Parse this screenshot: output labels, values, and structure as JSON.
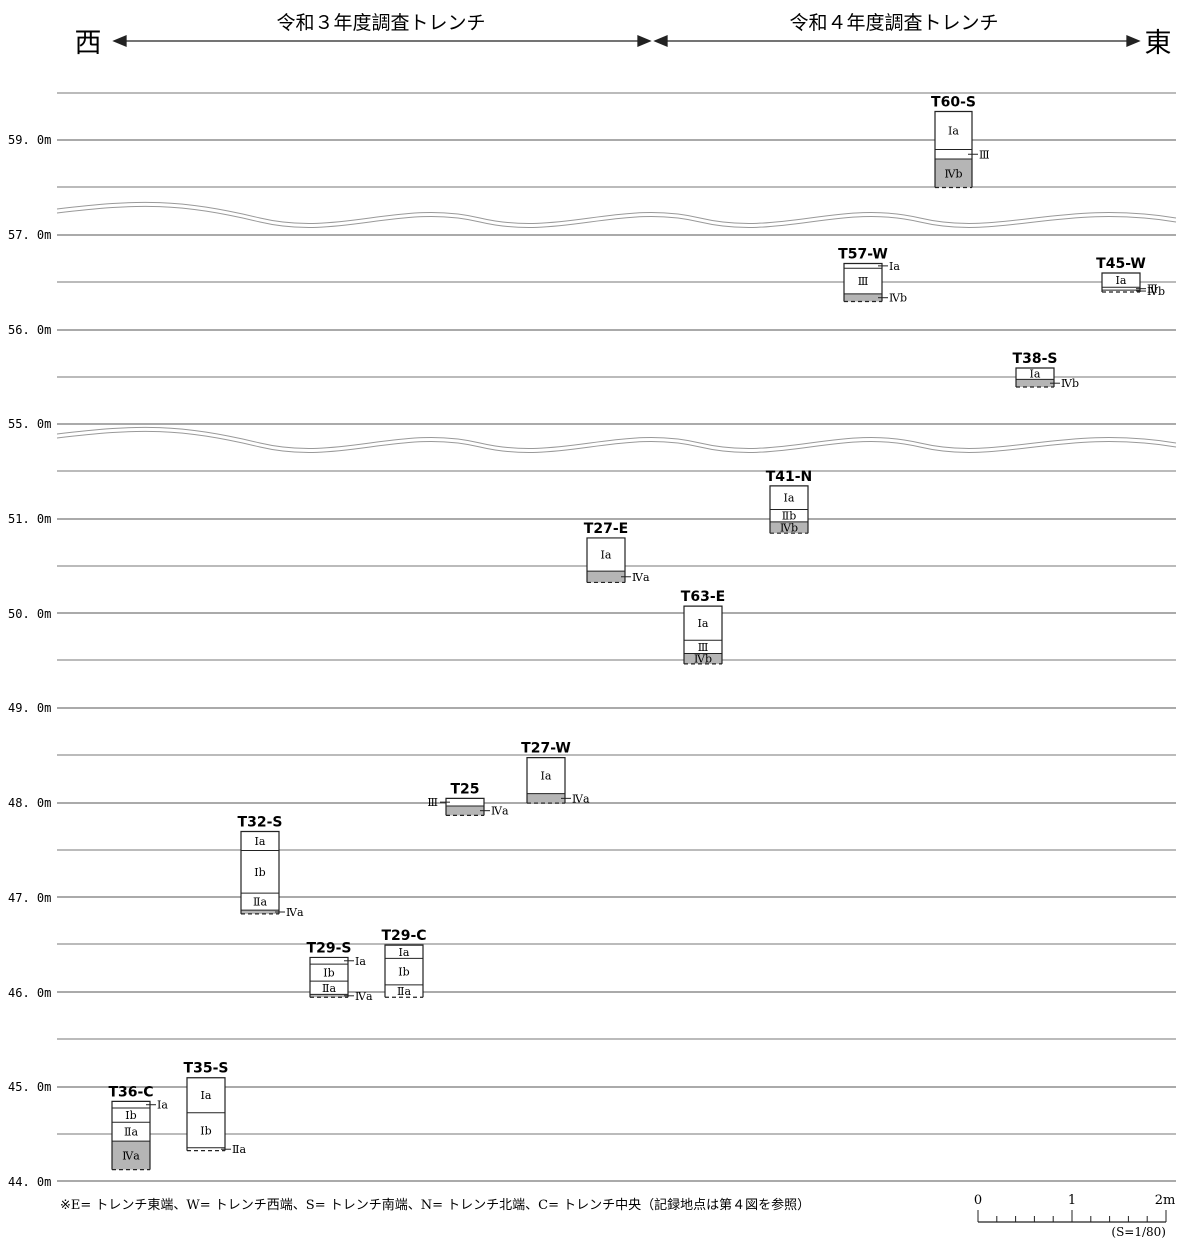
{
  "header": {
    "west": "西",
    "east": "東",
    "left_period": "令和３年度調査トレンチ",
    "right_period": "令和４年度調査トレンチ"
  },
  "elevation_labels": [
    "59. 0m",
    "57. 0m",
    "56. 0m",
    "55. 0m",
    "51. 0m",
    "50. 0m",
    "49. 0m",
    "48. 0m",
    "47. 0m",
    "46. 0m",
    "45. 0m",
    "44. 0m"
  ],
  "footnote": "※E= トレンチ東端、W= トレンチ西端、S= トレンチ南端、N= トレンチ北端、C= トレンチ中央（記録地点は第４図を参照）",
  "scale": {
    "ticks": [
      "0",
      "1",
      "2m"
    ],
    "ratio": "(S=1/80)"
  },
  "trenches": [
    {
      "id": "T60-S",
      "top_m": 59.3,
      "bottom_m": 58.5,
      "layers": [
        {
          "name": "Ⅰa",
          "top": 59.3,
          "bottom": 58.9,
          "fill": "white"
        },
        {
          "name": "Ⅲ",
          "top": 58.9,
          "bottom": 58.8,
          "fill": "white",
          "side": "right"
        },
        {
          "name": "Ⅳb",
          "top": 58.8,
          "bottom": 58.5,
          "fill": "gray"
        }
      ]
    },
    {
      "id": "T45-W",
      "top_m": 57.6,
      "bottom_m": 57.4,
      "layers": [
        {
          "name": "Ⅰa",
          "top": 57.6,
          "bottom": 57.45,
          "fill": "white"
        },
        {
          "name": "Ⅲ",
          "top": 57.45,
          "bottom": 57.42,
          "fill": "white",
          "side": "right"
        },
        {
          "name": "Ⅳb",
          "top": 57.42,
          "bottom": 57.4,
          "fill": "white",
          "side": "right"
        }
      ]
    },
    {
      "id": "T57-W",
      "top_m": 56.7,
      "bottom_m": 56.3,
      "layers": [
        {
          "name": "Ⅰa",
          "top": 56.7,
          "bottom": 56.65,
          "fill": "white",
          "side": "right"
        },
        {
          "name": "Ⅲ",
          "top": 56.65,
          "bottom": 56.38,
          "fill": "white"
        },
        {
          "name": "Ⅳb",
          "top": 56.38,
          "bottom": 56.3,
          "fill": "gray",
          "side": "right"
        }
      ]
    },
    {
      "id": "T38-S",
      "top_m": 55.6,
      "bottom_m": 55.4,
      "layers": [
        {
          "name": "Ⅰa",
          "top": 55.6,
          "bottom": 55.48,
          "fill": "white"
        },
        {
          "name": "Ⅳb",
          "top": 55.48,
          "bottom": 55.4,
          "fill": "gray",
          "side": "right"
        }
      ]
    },
    {
      "id": "T41-N",
      "top_m": 51.35,
      "bottom_m": 50.85,
      "layers": [
        {
          "name": "Ⅰa",
          "top": 51.35,
          "bottom": 51.1,
          "fill": "white"
        },
        {
          "name": "Ⅱb",
          "top": 51.1,
          "bottom": 50.97,
          "fill": "white"
        },
        {
          "name": "Ⅳb",
          "top": 50.97,
          "bottom": 50.85,
          "fill": "gray"
        }
      ]
    },
    {
      "id": "T27-E",
      "top_m": 50.8,
      "bottom_m": 50.33,
      "layers": [
        {
          "name": "Ⅰa",
          "top": 50.8,
          "bottom": 50.45,
          "fill": "white"
        },
        {
          "name": "Ⅳa",
          "top": 50.45,
          "bottom": 50.33,
          "fill": "gray",
          "side": "right"
        }
      ]
    },
    {
      "id": "T63-E",
      "top_m": 50.08,
      "bottom_m": 49.47,
      "layers": [
        {
          "name": "Ⅰa",
          "top": 50.08,
          "bottom": 49.72,
          "fill": "white"
        },
        {
          "name": "Ⅲ",
          "top": 49.72,
          "bottom": 49.58,
          "fill": "white"
        },
        {
          "name": "Ⅳb",
          "top": 49.58,
          "bottom": 49.47,
          "fill": "gray"
        }
      ]
    },
    {
      "id": "T27-W",
      "top_m": 48.48,
      "bottom_m": 48.0,
      "layers": [
        {
          "name": "Ⅰa",
          "top": 48.48,
          "bottom": 48.1,
          "fill": "white"
        },
        {
          "name": "Ⅳa",
          "top": 48.1,
          "bottom": 48.0,
          "fill": "gray",
          "side": "right"
        }
      ]
    },
    {
      "id": "T25",
      "top_m": 48.05,
      "bottom_m": 47.87,
      "layers": [
        {
          "name": "Ⅲ",
          "top": 48.05,
          "bottom": 47.97,
          "fill": "white",
          "side": "left"
        },
        {
          "name": "Ⅳa",
          "top": 47.97,
          "bottom": 47.87,
          "fill": "gray",
          "side": "right"
        }
      ]
    },
    {
      "id": "T32-S",
      "top_m": 47.7,
      "bottom_m": 46.83,
      "layers": [
        {
          "name": "Ⅰa",
          "top": 47.7,
          "bottom": 47.5,
          "fill": "white"
        },
        {
          "name": "Ⅰb",
          "top": 47.5,
          "bottom": 47.05,
          "fill": "white"
        },
        {
          "name": "Ⅱa",
          "top": 47.05,
          "bottom": 46.87,
          "fill": "white"
        },
        {
          "name": "Ⅳa",
          "top": 46.87,
          "bottom": 46.83,
          "fill": "gray",
          "side": "right"
        }
      ]
    },
    {
      "id": "T29-S",
      "top_m": 46.37,
      "bottom_m": 45.95,
      "layers": [
        {
          "name": "Ⅰa",
          "top": 46.37,
          "bottom": 46.3,
          "fill": "white",
          "side": "right"
        },
        {
          "name": "Ⅰb",
          "top": 46.3,
          "bottom": 46.12,
          "fill": "white"
        },
        {
          "name": "Ⅱa",
          "top": 46.12,
          "bottom": 45.98,
          "fill": "white"
        },
        {
          "name": "Ⅳa",
          "top": 45.98,
          "bottom": 45.95,
          "fill": "gray",
          "side": "right"
        }
      ]
    },
    {
      "id": "T29-C",
      "top_m": 46.5,
      "bottom_m": 45.95,
      "layers": [
        {
          "name": "Ⅰa",
          "top": 46.5,
          "bottom": 46.36,
          "fill": "white"
        },
        {
          "name": "Ⅰb",
          "top": 46.36,
          "bottom": 46.08,
          "fill": "white"
        },
        {
          "name": "Ⅱa",
          "top": 46.08,
          "bottom": 45.95,
          "fill": "white"
        }
      ]
    },
    {
      "id": "T36-C",
      "top_m": 44.85,
      "bottom_m": 44.13,
      "layers": [
        {
          "name": "Ⅰa",
          "top": 44.85,
          "bottom": 44.78,
          "fill": "white",
          "side": "right"
        },
        {
          "name": "Ⅰb",
          "top": 44.78,
          "bottom": 44.63,
          "fill": "white"
        },
        {
          "name": "Ⅱa",
          "top": 44.63,
          "bottom": 44.43,
          "fill": "white"
        },
        {
          "name": "Ⅳa",
          "top": 44.43,
          "bottom": 44.13,
          "fill": "gray"
        }
      ]
    },
    {
      "id": "T35-S",
      "top_m": 45.1,
      "bottom_m": 44.33,
      "layers": [
        {
          "name": "Ⅰa",
          "top": 45.1,
          "bottom": 44.73,
          "fill": "white"
        },
        {
          "name": "Ⅰb",
          "top": 44.73,
          "bottom": 44.36,
          "fill": "white"
        },
        {
          "name": "Ⅱa",
          "top": 44.36,
          "bottom": 44.33,
          "fill": "white",
          "side": "right"
        }
      ]
    }
  ]
}
